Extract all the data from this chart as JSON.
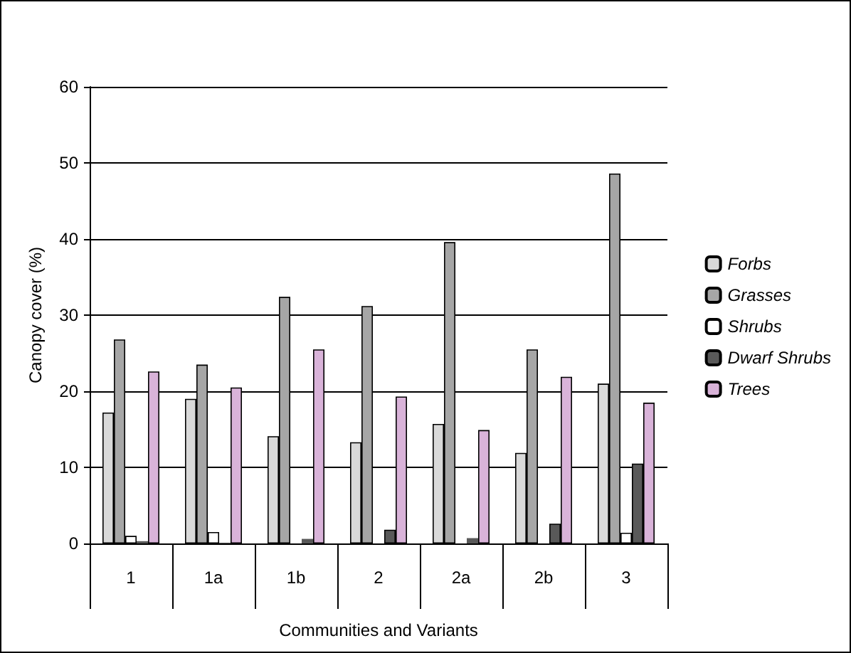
{
  "chart_data": {
    "type": "bar",
    "xlabel": "Communities and Variants",
    "ylabel": "Canopy cover (%)",
    "categories": [
      "1",
      "1a",
      "1b",
      "2",
      "2a",
      "2b",
      "3"
    ],
    "series": [
      {
        "name": "Forbs",
        "color": "#d9d9d9",
        "values": [
          17.2,
          19.0,
          14.1,
          13.3,
          15.7,
          11.9,
          21.0
        ]
      },
      {
        "name": "Grasses",
        "color": "#a6a6a6",
        "values": [
          26.8,
          23.5,
          32.4,
          31.2,
          39.6,
          25.5,
          48.6
        ]
      },
      {
        "name": "Shrubs",
        "color": "#ffffff",
        "values": [
          1.0,
          1.5,
          0.1,
          0.1,
          0.1,
          0.2,
          1.4
        ]
      },
      {
        "name": "Dwarf Shrubs",
        "color": "#595959",
        "values": [
          0.3,
          0.1,
          0.6,
          1.8,
          0.7,
          2.6,
          10.5
        ]
      },
      {
        "name": "Trees",
        "color": "#d9b3d9",
        "values": [
          22.6,
          20.5,
          25.5,
          19.3,
          14.9,
          21.9,
          18.5
        ]
      }
    ],
    "ylim": [
      0,
      60
    ],
    "yticks": [
      0,
      10,
      20,
      30,
      40,
      50,
      60
    ],
    "grid": "y",
    "legend": "right"
  }
}
